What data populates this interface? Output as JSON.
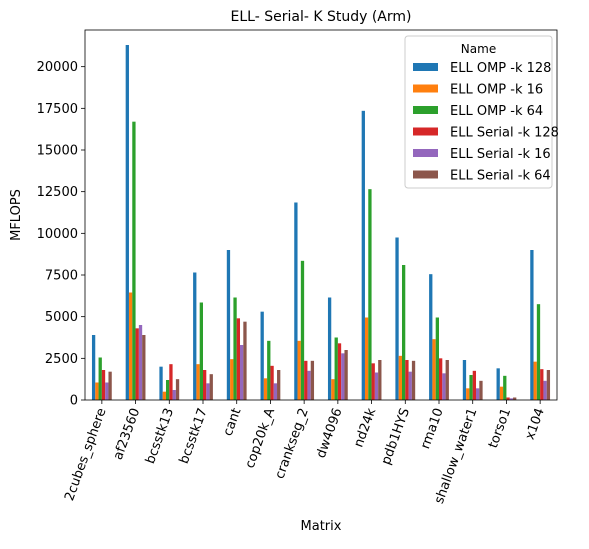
{
  "chart_data": {
    "type": "bar",
    "title": "ELL- Serial- K Study (Arm)",
    "xlabel": "Matrix",
    "ylabel": "MFLOPS",
    "ylim": [
      0,
      22200
    ],
    "yticks": [
      0,
      2500,
      5000,
      7500,
      10000,
      12500,
      15000,
      17500,
      20000
    ],
    "ytick_labels": [
      "0",
      "2500",
      "5000",
      "7500",
      "10000",
      "12500",
      "15000",
      "17500",
      "20000"
    ],
    "grid": false,
    "legend": {
      "title": "Name",
      "placement": "top-right"
    },
    "categories": [
      "2cubes_sphere",
      "af23560",
      "bcsstk13",
      "bcsstk17",
      "cant",
      "cop20k_A",
      "crankseg_2",
      "dw4096",
      "nd24k",
      "pdb1HYS",
      "rma10",
      "shallow_water1",
      "torso1",
      "x104"
    ],
    "series": [
      {
        "name": "ELL OMP -k 128",
        "color": "#1f77b4",
        "values": [
          3900,
          21300,
          2000,
          7650,
          9000,
          5300,
          11850,
          6150,
          17350,
          9750,
          7550,
          2400,
          1900,
          9000
        ]
      },
      {
        "name": "ELL OMP -k 16",
        "color": "#ff7f0e",
        "values": [
          1050,
          6450,
          500,
          2150,
          2450,
          1300,
          3550,
          1250,
          4950,
          2650,
          3650,
          700,
          800,
          2300
        ]
      },
      {
        "name": "ELL OMP -k 64",
        "color": "#2ca02c",
        "values": [
          2550,
          16700,
          1200,
          5850,
          6150,
          3550,
          8350,
          3750,
          12650,
          8100,
          4950,
          1500,
          1450,
          5750
        ]
      },
      {
        "name": "ELL Serial -k 128",
        "color": "#d62728",
        "values": [
          1800,
          4300,
          2150,
          1800,
          4900,
          2050,
          2350,
          3400,
          2200,
          2400,
          2500,
          1750,
          150,
          1850
        ]
      },
      {
        "name": "ELL Serial -k 16",
        "color": "#9467bd",
        "values": [
          1050,
          4500,
          600,
          1000,
          3300,
          1000,
          1750,
          2800,
          1650,
          1700,
          1600,
          700,
          100,
          1150
        ]
      },
      {
        "name": "ELL Serial -k 64",
        "color": "#8c564b",
        "values": [
          1700,
          3900,
          1250,
          1550,
          4700,
          1800,
          2350,
          3000,
          2400,
          2350,
          2400,
          1150,
          150,
          1800
        ]
      }
    ]
  }
}
